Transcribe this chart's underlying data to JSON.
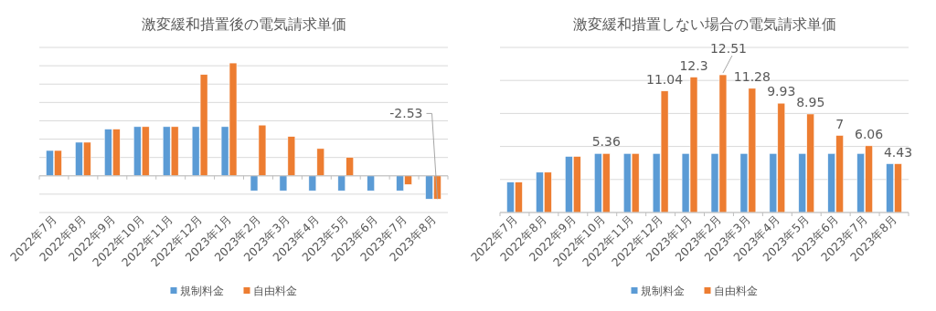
{
  "chart_data": [
    {
      "type": "bar",
      "title": "激変緩和措置後の電気請求単価",
      "categories": [
        "2022年7月",
        "2022年8月",
        "2022年9月",
        "2022年10月",
        "2022年11月",
        "2022年12月",
        "2023年1月",
        "2023年2月",
        "2023年3月",
        "2023年4月",
        "2023年5月",
        "2023年6月",
        "2023年7月",
        "2023年8月"
      ],
      "series": [
        {
          "name": "規制料金",
          "color": "#5b9bd5",
          "values": [
            2.76,
            3.66,
            5.09,
            5.36,
            5.36,
            5.36,
            5.36,
            -1.63,
            -1.63,
            -1.63,
            -1.63,
            -1.63,
            -1.63,
            -2.53
          ]
        },
        {
          "name": "自由料金",
          "color": "#ed7d31",
          "values": [
            2.76,
            3.66,
            5.09,
            5.36,
            5.36,
            11.04,
            12.3,
            5.53,
            4.28,
            2.97,
            2.0,
            0,
            -0.94,
            -2.53
          ],
          "value_labels": [
            null,
            null,
            null,
            null,
            null,
            null,
            null,
            null,
            null,
            null,
            null,
            null,
            null,
            "-2.53"
          ]
        }
      ],
      "ylim": [
        -4,
        14
      ],
      "yticks": [
        {
          "value": -4,
          "label": null
        },
        {
          "value": -2,
          "label": null
        },
        {
          "value": 0,
          "label": null
        },
        {
          "value": 2,
          "label": null
        },
        {
          "value": 4,
          "label": null
        },
        {
          "value": 6,
          "label": null
        },
        {
          "value": 8,
          "label": null
        },
        {
          "value": 10,
          "label": null
        },
        {
          "value": 12,
          "label": null
        },
        {
          "value": 14,
          "label": null
        }
      ],
      "grid": "y",
      "legend": "bottom",
      "tick_labels": "x"
    },
    {
      "type": "bar",
      "title": "激変緩和措置しない場合の電気請求単価",
      "categories": [
        "2022年7月",
        "2022年8月",
        "2022年9月",
        "2022年10月",
        "2022年11月",
        "2022年12月",
        "2023年1月",
        "2023年2月",
        "2023年3月",
        "2023年4月",
        "2023年5月",
        "2023年6月",
        "2023年7月",
        "2023年8月"
      ],
      "series": [
        {
          "name": "規制料金",
          "color": "#5b9bd5",
          "values": [
            2.76,
            3.66,
            5.09,
            5.36,
            5.36,
            5.36,
            5.36,
            5.36,
            5.36,
            5.36,
            5.36,
            5.36,
            5.36,
            4.43
          ]
        },
        {
          "name": "自由料金",
          "color": "#ed7d31",
          "values": [
            2.76,
            3.66,
            5.09,
            5.36,
            5.36,
            11.04,
            12.3,
            12.51,
            11.28,
            9.93,
            8.95,
            7,
            6.06,
            4.43
          ],
          "value_labels": [
            null,
            null,
            null,
            "5.36",
            null,
            "11.04",
            "12.3",
            "12.51",
            "11.28",
            "9.93",
            "8.95",
            "7",
            "6.06",
            "4.43"
          ]
        }
      ],
      "ylim": [
        0,
        15
      ],
      "yticks": [
        {
          "value": 0,
          "label": null
        },
        {
          "value": 3,
          "label": null
        },
        {
          "value": 6,
          "label": null
        },
        {
          "value": 9,
          "label": null
        },
        {
          "value": 12,
          "label": null
        },
        {
          "value": 15,
          "label": null
        }
      ],
      "grid": "y",
      "legend": "bottom",
      "tick_labels": "x"
    }
  ]
}
